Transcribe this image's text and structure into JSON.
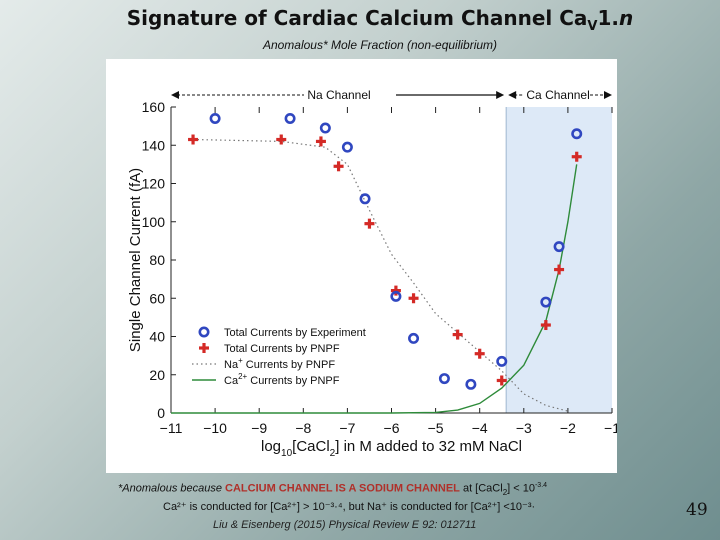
{
  "slide": {
    "title_main": "Signature of Cardiac Calcium Channel Ca",
    "title_sub": "V",
    "title_tail_1": "1.",
    "title_tail_2": "n",
    "subtitle": "Anomalous* Mole Fraction (non-equilibrium)",
    "note_line1_a": "*Anomalous because ",
    "note_line1_caps": "CALCIUM CHANNEL IS A SODIUM CHANNEL",
    "note_line1_b": " at [CaCl",
    "note_line1_c": "] < 10",
    "note_line1_d": "-3.4",
    "note_line2": "Ca²⁺ is conducted for [Ca²⁺] > 10⁻³·⁴, but Na⁺ is conducted for [Ca²⁺] <10⁻³·",
    "citation": "Liu & Eisenberg (2015) Physical Review E 92: 012711",
    "page_number": "49"
  },
  "chart_data": {
    "type": "scatter",
    "xlabel": "log10[CaCl2] in M added to 32 mM NaCl",
    "xlabel_parts": {
      "pre": "log",
      "sub1": "10",
      "mid": "[CaCl",
      "sub2": "2",
      "post": "] in M added to 32 mM NaCl"
    },
    "ylabel": "Single Channel Current (fA)",
    "xlim": [
      -11,
      -1
    ],
    "ylim": [
      0,
      160
    ],
    "x_ticks": [
      "−11",
      "−10",
      "−9",
      "−8",
      "−7",
      "−6",
      "−5",
      "−4",
      "−3",
      "−2",
      "−1"
    ],
    "x_tick_values": [
      -11,
      -10,
      -9,
      -8,
      -7,
      -6,
      -5,
      -4,
      -3,
      -2,
      -1
    ],
    "y_ticks": [
      "0",
      "20",
      "40",
      "60",
      "80",
      "100",
      "120",
      "140",
      "160"
    ],
    "y_tick_values": [
      0,
      20,
      40,
      60,
      80,
      100,
      120,
      140,
      160
    ],
    "region_labels": {
      "na": "Na Channel",
      "ca": "Ca Channel"
    },
    "region_boundary_x": -3.4,
    "colors": {
      "experiment": "#3047c0",
      "pnpf": "#d42a26",
      "na_line": "#777777",
      "ca_line": "#2e8b3a",
      "ca_region": "#dde9f7"
    },
    "series": [
      {
        "name": "Total Currents by Experiment",
        "marker": "circle",
        "points": [
          [
            -10,
            154
          ],
          [
            -8.3,
            154
          ],
          [
            -7.5,
            149
          ],
          [
            -7,
            139
          ],
          [
            -6.6,
            112
          ],
          [
            -5.9,
            61
          ],
          [
            -5.5,
            39
          ],
          [
            -4.8,
            18
          ],
          [
            -4.2,
            15
          ],
          [
            -3.5,
            27
          ],
          [
            -2.5,
            58
          ],
          [
            -2.2,
            87
          ],
          [
            -1.8,
            146
          ]
        ]
      },
      {
        "name": "Total Currents by PNPF",
        "marker": "cross",
        "points": [
          [
            -10.5,
            143
          ],
          [
            -8.5,
            143
          ],
          [
            -7.6,
            142
          ],
          [
            -7.2,
            129
          ],
          [
            -6.5,
            99
          ],
          [
            -5.9,
            64
          ],
          [
            -5.5,
            60
          ],
          [
            -4.5,
            41
          ],
          [
            -4,
            31
          ],
          [
            -3.5,
            17
          ],
          [
            -2.5,
            46
          ],
          [
            -2.2,
            75
          ],
          [
            -1.8,
            134
          ]
        ]
      },
      {
        "name": "Na+ Currents by PNPF",
        "label_base": "Na",
        "label_sup": "+",
        "label_rest": " Currents by PNPF",
        "marker": "dotted-line",
        "points": [
          [
            -10.5,
            143
          ],
          [
            -8.5,
            142
          ],
          [
            -7.5,
            139
          ],
          [
            -7,
            130
          ],
          [
            -6.5,
            106
          ],
          [
            -6,
            83
          ],
          [
            -5.5,
            68
          ],
          [
            -5,
            52
          ],
          [
            -4.5,
            42
          ],
          [
            -4,
            32
          ],
          [
            -3.5,
            22
          ],
          [
            -3,
            10
          ],
          [
            -2.5,
            4
          ],
          [
            -2,
            1
          ]
        ]
      },
      {
        "name": "Ca2+ Currents by PNPF",
        "label_base": "Ca",
        "label_sup": "2+",
        "label_rest": " Currents by PNPF",
        "marker": "solid-line",
        "points": [
          [
            -11,
            0
          ],
          [
            -6,
            0
          ],
          [
            -5,
            0.3
          ],
          [
            -4.5,
            1.5
          ],
          [
            -4,
            5
          ],
          [
            -3.5,
            13
          ],
          [
            -3,
            25
          ],
          [
            -2.5,
            48
          ],
          [
            -2.2,
            75
          ],
          [
            -2,
            100
          ],
          [
            -1.8,
            130
          ]
        ]
      }
    ],
    "legend_position": "bottom-left"
  }
}
